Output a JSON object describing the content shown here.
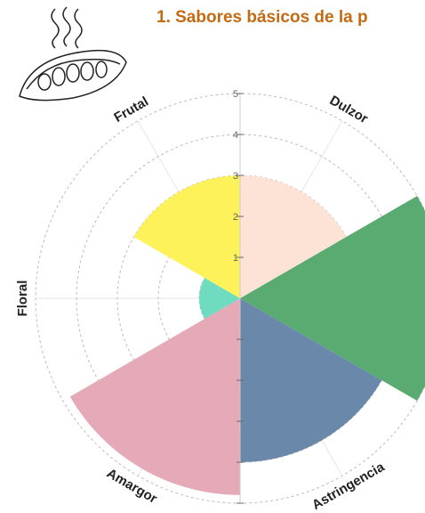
{
  "chart_data": {
    "type": "polar",
    "title": "1. Sabores básicos de la p",
    "categories": [
      "Dulzor",
      null,
      "Astringencia",
      "Amargor",
      "Floral",
      "Frutal"
    ],
    "values": [
      3,
      5,
      4,
      4.8,
      1,
      3
    ],
    "colors": [
      "#fde3d6",
      "#5aab72",
      "#6a89aa",
      "#e5a9b8",
      "#6fdcc0",
      "#fef25a"
    ],
    "ylim": [
      0,
      5
    ],
    "yticks": [
      1,
      2,
      3,
      4,
      5
    ],
    "grid": true
  }
}
